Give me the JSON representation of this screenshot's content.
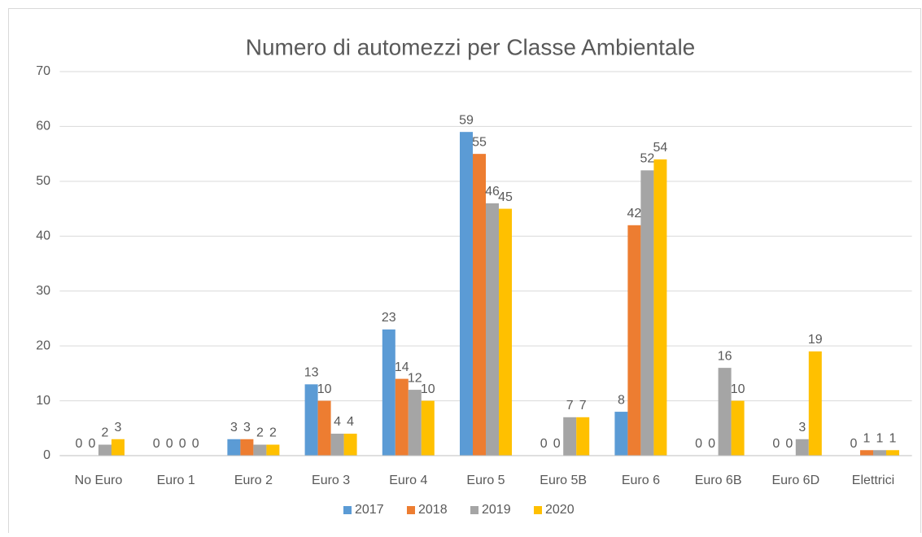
{
  "chart_data": {
    "type": "bar",
    "title": "Numero di automezzi per Classe Ambientale",
    "categories": [
      "No Euro",
      "Euro 1",
      "Euro 2",
      "Euro 3",
      "Euro 4",
      "Euro 5",
      "Euro 5B",
      "Euro 6",
      "Euro 6B",
      "Euro 6D",
      "Elettrici"
    ],
    "series": [
      {
        "name": "2017",
        "color": "#5b9bd5",
        "values": [
          0,
          0,
          3,
          13,
          23,
          59,
          0,
          8,
          0,
          0,
          0
        ]
      },
      {
        "name": "2018",
        "color": "#ed7d31",
        "values": [
          0,
          0,
          3,
          10,
          14,
          55,
          0,
          42,
          0,
          0,
          1
        ]
      },
      {
        "name": "2019",
        "color": "#a5a5a5",
        "values": [
          2,
          0,
          2,
          4,
          12,
          46,
          7,
          52,
          16,
          3,
          1
        ]
      },
      {
        "name": "2020",
        "color": "#ffc000",
        "values": [
          3,
          0,
          2,
          4,
          10,
          45,
          7,
          54,
          10,
          19,
          1
        ]
      }
    ],
    "ylim": [
      0,
      70
    ],
    "yticks": [
      0,
      10,
      20,
      30,
      40,
      50,
      60,
      70
    ],
    "grid": true,
    "legend": "bottom",
    "data_labels": true
  }
}
